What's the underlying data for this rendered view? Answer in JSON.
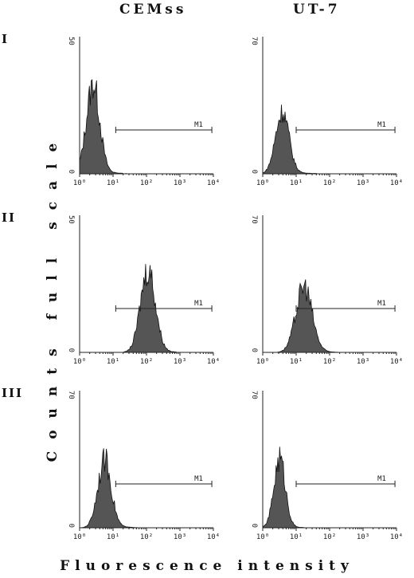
{
  "columns": [
    "CEMss",
    "UT-7"
  ],
  "rows": [
    "I",
    "II",
    "III"
  ],
  "y_axis_title": "Counts full scale",
  "x_axis_title": "Fluorescence intensity",
  "chart_data": [
    {
      "type": "area",
      "row": "I",
      "column": "CEMss",
      "x_scale": "log",
      "xlim": [
        1,
        10000
      ],
      "ylim": [
        0,
        50
      ],
      "x_ticks": [
        "10⁰",
        "10¹",
        "10²",
        "10³",
        "10⁴"
      ],
      "y_ticks": [
        "0",
        "50"
      ],
      "gate": {
        "label": "M1",
        "x": [
          12,
          9000
        ]
      },
      "peak_x": 2.5,
      "peak_count": 32,
      "log_sigma": 0.2,
      "tail": 0.04
    },
    {
      "type": "area",
      "row": "I",
      "column": "UT-7",
      "x_scale": "log",
      "xlim": [
        1,
        10000
      ],
      "ylim": [
        0,
        70
      ],
      "x_ticks": [
        "10⁰",
        "10¹",
        "10²",
        "10³",
        "10⁴"
      ],
      "y_ticks": [
        "0",
        "70"
      ],
      "gate": {
        "label": "M1",
        "x": [
          10,
          9000
        ]
      },
      "peak_x": 3.8,
      "peak_count": 31,
      "log_sigma": 0.2,
      "tail": 0.05
    },
    {
      "type": "area",
      "row": "II",
      "column": "CEMss",
      "x_scale": "log",
      "xlim": [
        1,
        10000
      ],
      "ylim": [
        0,
        50
      ],
      "x_ticks": [
        "10⁰",
        "10¹",
        "10²",
        "10³",
        "10⁴"
      ],
      "y_ticks": [
        "0",
        "50"
      ],
      "gate": {
        "label": "M1",
        "x": [
          12,
          9000
        ]
      },
      "peak_x": 110,
      "peak_count": 30,
      "log_sigma": 0.22,
      "tail": 0.03
    },
    {
      "type": "area",
      "row": "II",
      "column": "UT-7",
      "x_scale": "log",
      "xlim": [
        1,
        10000
      ],
      "ylim": [
        0,
        70
      ],
      "x_ticks": [
        "10⁰",
        "10¹",
        "10²",
        "10³",
        "10⁴"
      ],
      "y_ticks": [
        "0",
        "70"
      ],
      "gate": {
        "label": "M1",
        "x": [
          10,
          9000
        ]
      },
      "peak_x": 17,
      "peak_count": 33,
      "log_sigma": 0.24,
      "tail": 0.04
    },
    {
      "type": "area",
      "row": "III",
      "column": "CEMss",
      "x_scale": "log",
      "xlim": [
        1,
        10000
      ],
      "ylim": [
        0,
        70
      ],
      "x_ticks": [
        "10⁰",
        "10¹",
        "10²",
        "10³",
        "10⁴"
      ],
      "y_ticks": [
        "0",
        "70"
      ],
      "gate": {
        "label": "M1",
        "x": [
          12,
          9000
        ]
      },
      "peak_x": 5.5,
      "peak_count": 34,
      "log_sigma": 0.2,
      "tail": 0.04
    },
    {
      "type": "area",
      "row": "III",
      "column": "UT-7",
      "x_scale": "log",
      "xlim": [
        1,
        10000
      ],
      "ylim": [
        0,
        70
      ],
      "x_ticks": [
        "10⁰",
        "10¹",
        "10²",
        "10³",
        "10⁴"
      ],
      "y_ticks": [
        "0",
        "70"
      ],
      "gate": {
        "label": "M1",
        "x": [
          10,
          9000
        ]
      },
      "peak_x": 3.2,
      "peak_count": 35,
      "log_sigma": 0.17,
      "tail": 0.02
    }
  ]
}
